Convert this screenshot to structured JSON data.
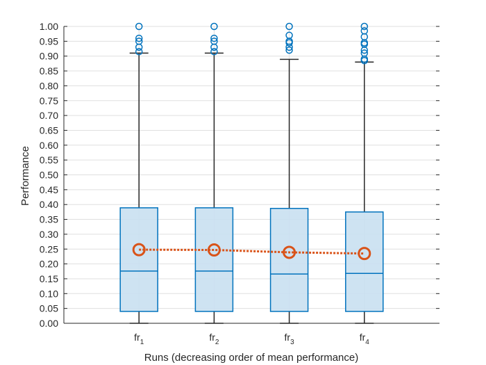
{
  "chart_data": {
    "type": "box",
    "xlabel": "Runs (decreasing order of mean performance)",
    "ylabel": "Performance",
    "ylim": [
      0,
      1
    ],
    "yticks": [
      "0.00",
      "0.05",
      "0.10",
      "0.15",
      "0.20",
      "0.25",
      "0.30",
      "0.35",
      "0.40",
      "0.45",
      "0.50",
      "0.55",
      "0.60",
      "0.65",
      "0.70",
      "0.75",
      "0.80",
      "0.85",
      "0.90",
      "0.95",
      "1.00"
    ],
    "grid": true,
    "categories": [
      {
        "base": "fr",
        "sub": "1"
      },
      {
        "base": "fr",
        "sub": "2"
      },
      {
        "base": "fr",
        "sub": "3"
      },
      {
        "base": "fr",
        "sub": "4"
      }
    ],
    "boxes": [
      {
        "min": 0.0,
        "q1": 0.04,
        "median": 0.176,
        "q3": 0.389,
        "whisker_high": 0.91,
        "mean": 0.248,
        "outliers": [
          0.915,
          0.93,
          0.95,
          0.96,
          1.0
        ]
      },
      {
        "min": 0.0,
        "q1": 0.04,
        "median": 0.176,
        "q3": 0.389,
        "whisker_high": 0.91,
        "mean": 0.247,
        "outliers": [
          0.915,
          0.93,
          0.95,
          0.96,
          1.0
        ]
      },
      {
        "min": 0.0,
        "q1": 0.04,
        "median": 0.166,
        "q3": 0.387,
        "whisker_high": 0.889,
        "mean": 0.239,
        "outliers": [
          0.92,
          0.93,
          0.945,
          0.95,
          0.97,
          1.0
        ]
      },
      {
        "min": 0.0,
        "q1": 0.04,
        "median": 0.168,
        "q3": 0.375,
        "whisker_high": 0.88,
        "mean": 0.235,
        "outliers": [
          0.885,
          0.89,
          0.91,
          0.92,
          0.94,
          0.945,
          0.965,
          0.985,
          1.0
        ]
      }
    ],
    "colors": {
      "box_edge": "#0072bd",
      "box_fill": "#c9e0f1",
      "whisker": "#262626",
      "outlier": "#0072bd",
      "mean_marker": "#d95319",
      "mean_line": "#d95319",
      "grid": "#dfdfdf",
      "axis": "#262626"
    }
  }
}
